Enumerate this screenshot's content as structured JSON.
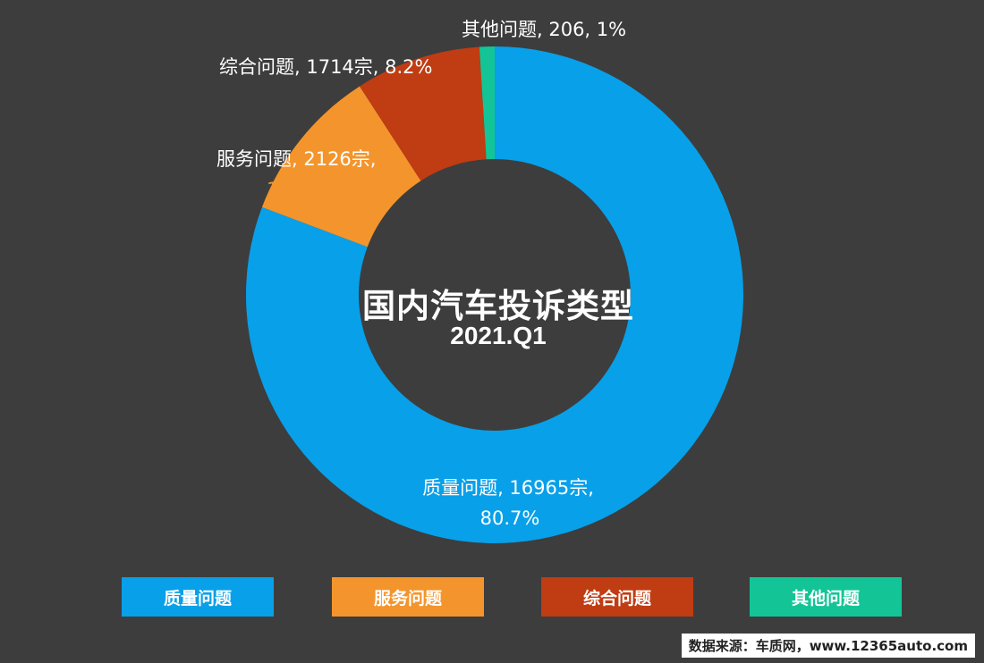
{
  "chart_data": {
    "type": "pie",
    "title": "国内汽车投诉类型",
    "subtitle": "2021.Q1",
    "slices": [
      {
        "name": "质量问题",
        "value": 16965,
        "percent": 80.7,
        "color": "#08a0e9",
        "label_line1": "质量问题, 16965宗,",
        "label_line2": "80.7%"
      },
      {
        "name": "服务问题",
        "value": 2126,
        "percent": 10.1,
        "color": "#f3952c",
        "label_line1": "服务问题, 2126宗,",
        "label_line2": "10.1%"
      },
      {
        "name": "综合问题",
        "value": 1714,
        "percent": 8.2,
        "color": "#c03c12",
        "label_line1": "综合问题, 1714宗, 8.2%",
        "label_line2": ""
      },
      {
        "name": "其他问题",
        "value": 206,
        "percent": 1,
        "color": "#13c596",
        "label_line1": "其他问题, 206, 1%",
        "label_line2": ""
      }
    ],
    "legend": [
      "质量问题",
      "服务问题",
      "综合问题",
      "其他问题"
    ],
    "legend_placement": "bottom"
  },
  "source": "数据来源：车质网，www.12365auto.com"
}
